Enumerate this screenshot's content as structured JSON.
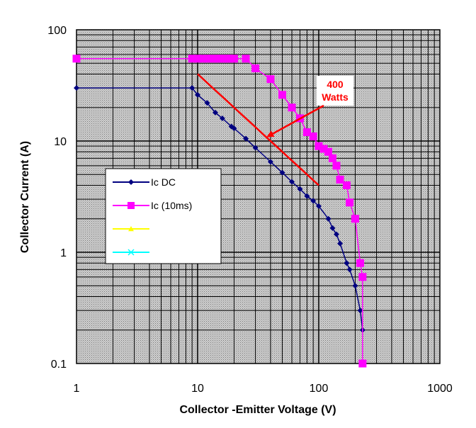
{
  "chart_data": {
    "type": "line",
    "xlabel": "Collector -Emitter Voltage (V)",
    "ylabel": "Collector Current (A)",
    "xscale": "log",
    "yscale": "log",
    "xlim": [
      1,
      1000
    ],
    "ylim": [
      0.1,
      100
    ],
    "x_tick_labels": [
      "1",
      "10",
      "100",
      "1000"
    ],
    "y_tick_labels": [
      "0.1",
      "1",
      "10",
      "100"
    ],
    "grid": true,
    "legend_position": "left-center",
    "series": [
      {
        "name": "Ic DC",
        "color": "#000080",
        "marker": "diamond",
        "x": [
          1,
          9,
          10,
          12,
          14,
          16,
          19,
          20,
          25,
          30,
          40,
          50,
          60,
          70,
          80,
          90,
          100,
          120,
          130,
          140,
          150,
          170,
          180,
          200,
          220,
          230
        ],
        "y": [
          30,
          30,
          26,
          22,
          18,
          16,
          13.5,
          13,
          10.5,
          8.7,
          6.5,
          5.2,
          4.3,
          3.7,
          3.2,
          2.9,
          2.6,
          2.0,
          1.65,
          1.45,
          1.2,
          0.8,
          0.7,
          0.5,
          0.3,
          0.2
        ]
      },
      {
        "name": "Ic (10ms)",
        "color": "#ff00ff",
        "marker": "square",
        "x": [
          1,
          9,
          10,
          11,
          12,
          13,
          14,
          15,
          16,
          17,
          18,
          19,
          20,
          25,
          30,
          40,
          50,
          60,
          70,
          80,
          90,
          100,
          110,
          120,
          130,
          140,
          150,
          170,
          180,
          200,
          220,
          230,
          230
        ],
        "y": [
          55,
          55,
          55,
          55,
          55,
          55,
          55,
          55,
          55,
          55,
          55,
          55,
          55,
          55,
          45,
          36,
          26,
          20,
          16,
          12,
          11,
          9,
          8.5,
          8,
          7,
          6,
          4.5,
          4,
          2.8,
          2,
          0.8,
          0.6,
          0.1
        ]
      },
      {
        "name": "",
        "color": "#ffff00",
        "marker": "triangle",
        "x": [],
        "y": []
      },
      {
        "name": "",
        "color": "#00ffff",
        "marker": "x",
        "x": [],
        "y": []
      }
    ],
    "power_limit_line": {
      "color": "#ff0000",
      "x": [
        10,
        100
      ],
      "y": [
        40,
        4
      ]
    },
    "annotation": {
      "text_lines": [
        "400",
        "Watts"
      ],
      "color": "#ff0000",
      "arrow_to": {
        "x": 38,
        "y": 11
      }
    }
  }
}
